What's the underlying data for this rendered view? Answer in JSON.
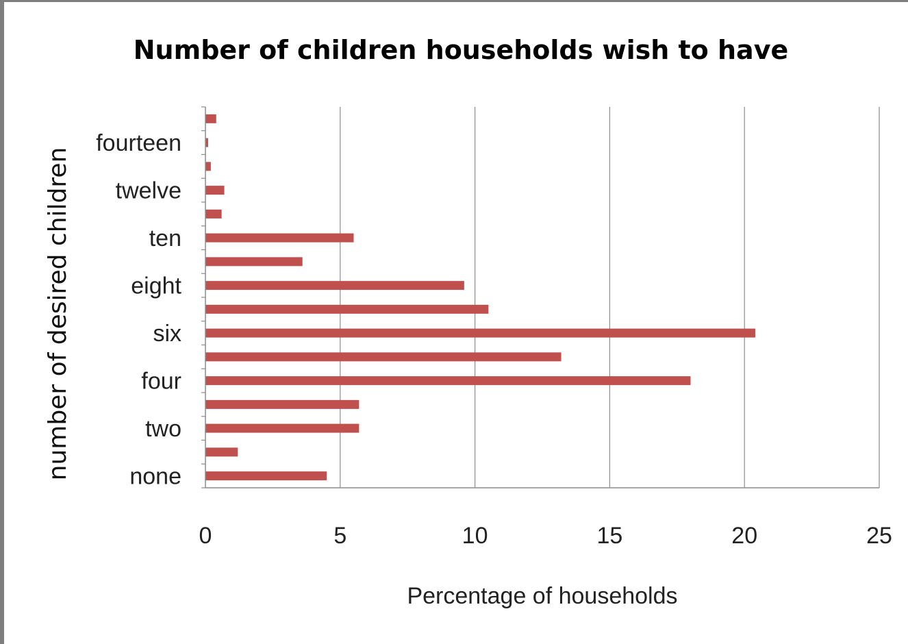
{
  "chart_data": {
    "type": "bar",
    "orientation": "horizontal",
    "title": "Number of children households wish to have",
    "xlabel": "Percentage of households",
    "ylabel": "number of desired children",
    "xlim": [
      0,
      25
    ],
    "xticks": [
      0,
      5,
      10,
      15,
      20,
      25
    ],
    "grid": "vertical",
    "bar_color": "#c0504d",
    "categories": [
      "none",
      "",
      "two",
      "",
      "four",
      "",
      "six",
      "",
      "eight",
      "",
      "ten",
      "",
      "twelve",
      "",
      "fourteen",
      ""
    ],
    "values": [
      4.5,
      1.2,
      5.7,
      5.7,
      18.0,
      13.2,
      20.4,
      10.5,
      9.6,
      3.6,
      5.5,
      0.6,
      0.7,
      0.2,
      0.1,
      0.4
    ]
  }
}
